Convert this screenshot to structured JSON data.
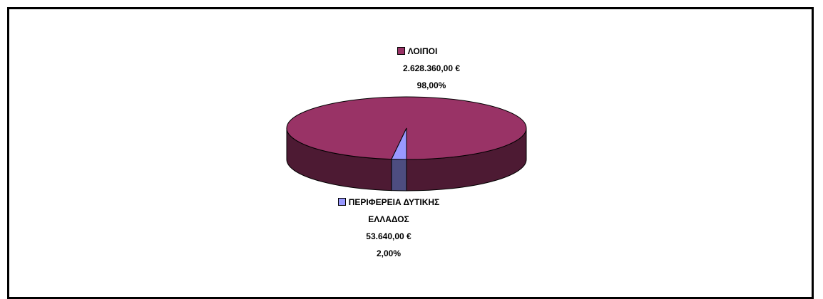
{
  "chart_data": {
    "type": "pie3d",
    "categories": [
      "ΛΟΙΠΟΙ",
      "ΠΕΡΙΦΕΡΕΙΑ ΔΥΤΙΚΗΣ ΕΛΛΑΔΟΣ"
    ],
    "values": [
      98,
      2
    ],
    "value_labels": [
      "98,00%",
      "2,00%"
    ],
    "amounts": [
      2628360,
      53640
    ],
    "amount_labels": [
      "2.628.360,00 €",
      "53.640,00 €"
    ],
    "colors": [
      "#993366",
      "#9999ff"
    ]
  }
}
